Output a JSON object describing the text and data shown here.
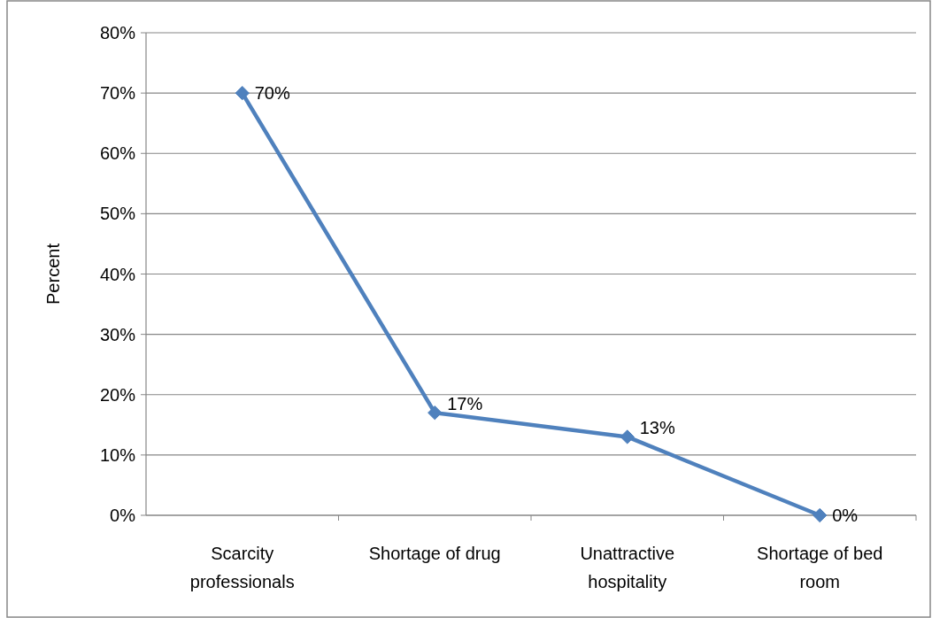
{
  "chart_data": {
    "type": "line",
    "ylabel": "Percent",
    "categories": [
      "Scarcity professionals",
      "Shortage of drug",
      "Unattractive hospitality",
      "Shortage of bed room"
    ],
    "series": [
      {
        "color": "#4f81bd",
        "values": [
          70,
          17,
          13,
          0
        ],
        "value_labels": [
          "70%",
          "17%",
          "13%",
          "0%"
        ]
      }
    ],
    "ylim": [
      0,
      80
    ],
    "yticks": [
      {
        "value": 0,
        "label": "0%"
      },
      {
        "value": 10,
        "label": "10%"
      },
      {
        "value": 20,
        "label": "20%"
      },
      {
        "value": 30,
        "label": "30%"
      },
      {
        "value": 40,
        "label": "40%"
      },
      {
        "value": 50,
        "label": "50%"
      },
      {
        "value": 60,
        "label": "60%"
      },
      {
        "value": 70,
        "label": "70%"
      },
      {
        "value": 80,
        "label": "80%"
      }
    ],
    "grid": "y",
    "marker": "diamond",
    "line_style": "solid"
  }
}
